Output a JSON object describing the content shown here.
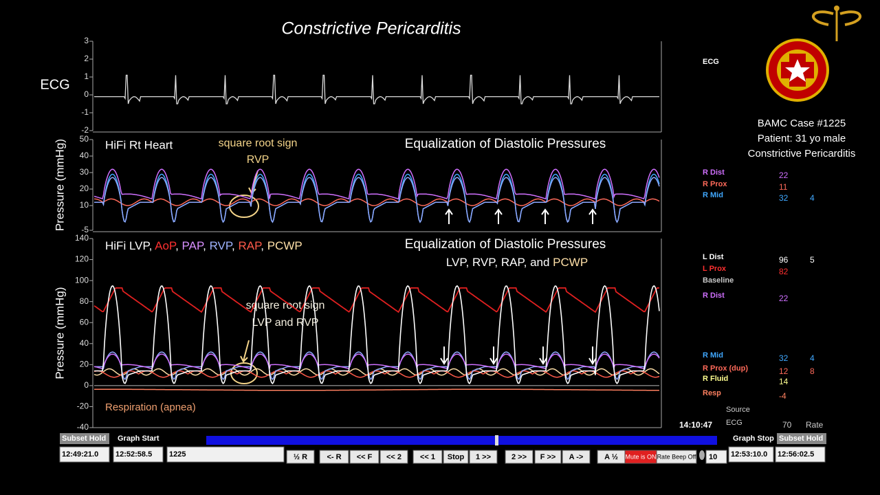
{
  "title": "Constrictive Pericarditis",
  "panels": [
    {
      "label": "ECG",
      "ylim": [
        -2,
        3
      ],
      "yticks": [
        3,
        2,
        1,
        0,
        -1,
        -2
      ]
    },
    {
      "ylabel": "Pressure (mmHg)",
      "ylim": [
        -5,
        50
      ],
      "yticks": [
        50,
        40,
        30,
        20,
        10,
        -5
      ],
      "subtitle": "HiFi Rt Heart",
      "heading": "Equalization of Diastolic Pressures",
      "annotation": [
        "square root sign",
        "RVP"
      ]
    },
    {
      "ylabel": "Pressure (mmHg)",
      "ylim": [
        -40,
        140
      ],
      "yticks": [
        140,
        120,
        100,
        80,
        60,
        40,
        20,
        0,
        -20,
        -40
      ],
      "subtitle_parts": [
        {
          "text": "HiFi LVP, ",
          "color": "#ffffff"
        },
        {
          "text": "AoP",
          "color": "#ff3030"
        },
        {
          "text": ", ",
          "color": "#ffffff"
        },
        {
          "text": "PAP",
          "color": "#d890ff"
        },
        {
          "text": ", ",
          "color": "#ffffff"
        },
        {
          "text": "RVP",
          "color": "#9fb4ff"
        },
        {
          "text": ", ",
          "color": "#ffffff"
        },
        {
          "text": "RAP",
          "color": "#ff5a4a"
        },
        {
          "text": ", ",
          "color": "#ffffff"
        },
        {
          "text": "PCWP",
          "color": "#ffe0a8"
        }
      ],
      "heading": "Equalization of Diastolic Pressures",
      "heading2_parts": [
        {
          "text": "LVP,  RVP, RAP, and ",
          "color": "#ffffff"
        },
        {
          "text": "PCWP",
          "color": "#ffe0a8"
        }
      ],
      "annotation": [
        "square root sign",
        "LVP and RVP"
      ],
      "footnote": "Respiration (apnea)"
    }
  ],
  "case": [
    "BAMC Case #1225",
    "Patient:  31 yo male",
    "Constrictive Pericarditis"
  ],
  "channels": [
    {
      "name": "ECG",
      "color": "#ffffff"
    },
    {
      "name": "R Dist",
      "color": "#d070ff",
      "value": 22
    },
    {
      "name": "R Prox",
      "color": "#ff6a5a",
      "value": 11
    },
    {
      "name": "R Mid",
      "color": "#40a8ff",
      "value": 32,
      "value2": 4
    },
    {
      "name": "L Dist",
      "color": "#ffffff",
      "value": 96,
      "value2": 5
    },
    {
      "name": "L Prox",
      "color": "#ff3030",
      "value": 82
    },
    {
      "name": "Baseline",
      "color": "#c8c8c8"
    },
    {
      "name": "R Dist",
      "color": "#d070ff",
      "value": 22
    },
    {
      "name": "R Mid",
      "color": "#40a8ff",
      "value": 32,
      "value2": 4
    },
    {
      "name": "R Prox (dup)",
      "color": "#ff6a5a",
      "value": 12,
      "value2": 8
    },
    {
      "name": "R Fluid",
      "color": "#ffff90",
      "value": 14
    },
    {
      "name": "Resp",
      "color": "#ff8060",
      "value": -4
    }
  ],
  "clock": "14:10:47",
  "source": {
    "label": "Source",
    "name": "ECG",
    "value": 70,
    "unit": "Rate"
  },
  "controls": {
    "labels": [
      "Subset Hold",
      "Graph Start",
      "Graph Stop",
      "Subset Hold"
    ],
    "fields": [
      "12:49:21.0",
      "12:52:58.5",
      "1225",
      "12:53:10.0",
      "12:56:02.5"
    ],
    "buttons": [
      "½ R",
      "<- R",
      "<< F",
      "<< 2",
      "<< 1",
      "Stop",
      "1 >>",
      "2 >>",
      "F >>",
      "A ->",
      "A ½",
      "Mute is ON",
      "Rate Beep Off"
    ],
    "counter": "10"
  }
}
